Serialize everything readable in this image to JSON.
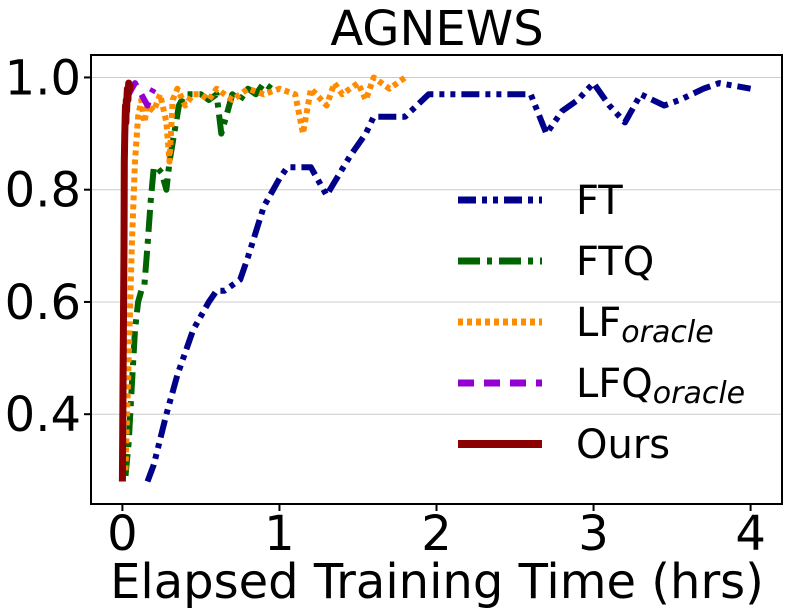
{
  "chart_data": {
    "type": "line",
    "title": "AGNEWS",
    "xlabel": "Elapsed Training Time (hrs)",
    "ylabel": "",
    "xlim": [
      -0.2,
      4.2
    ],
    "ylim": [
      0.24,
      1.04
    ],
    "xticks": [
      0,
      1,
      2,
      3,
      4
    ],
    "xtick_labels": [
      "0",
      "1",
      "2",
      "3",
      "4"
    ],
    "yticks": [
      0.4,
      0.6,
      0.8,
      1.0
    ],
    "ytick_labels": [
      "0.4",
      "0.6",
      "0.8",
      "1.0"
    ],
    "grid": "horizontal",
    "legend_placement": "lower-right",
    "series": [
      {
        "name": "FT",
        "legend_main": "FT",
        "legend_sub": "",
        "color": "#00008b",
        "dash": "dashdotdot",
        "x": [
          0.16,
          0.2,
          0.28,
          0.35,
          0.45,
          0.55,
          0.6,
          0.65,
          0.75,
          0.8,
          0.9,
          1.0,
          1.05,
          1.1,
          1.2,
          1.3,
          1.45,
          1.55,
          1.6,
          1.65,
          1.8,
          1.95,
          2.0,
          2.2,
          2.3,
          2.5,
          2.6,
          2.7,
          2.8,
          2.9,
          3.0,
          3.1,
          3.2,
          3.3,
          3.45,
          3.55,
          3.7,
          3.8,
          4.0
        ],
        "y": [
          0.28,
          0.31,
          0.4,
          0.47,
          0.55,
          0.6,
          0.62,
          0.62,
          0.64,
          0.68,
          0.77,
          0.82,
          0.84,
          0.84,
          0.84,
          0.79,
          0.86,
          0.9,
          0.93,
          0.93,
          0.93,
          0.97,
          0.97,
          0.97,
          0.97,
          0.97,
          0.97,
          0.9,
          0.94,
          0.96,
          0.99,
          0.95,
          0.92,
          0.97,
          0.95,
          0.96,
          0.98,
          0.99,
          0.98
        ]
      },
      {
        "name": "FTQ",
        "legend_main": "FTQ",
        "legend_sub": "",
        "color": "#006400",
        "dash": "dashdot",
        "x": [
          0.02,
          0.04,
          0.06,
          0.08,
          0.1,
          0.12,
          0.14,
          0.16,
          0.18,
          0.2,
          0.22,
          0.25,
          0.28,
          0.3,
          0.33,
          0.36,
          0.4,
          0.45,
          0.5,
          0.55,
          0.6,
          0.63,
          0.66,
          0.7,
          0.75,
          0.8,
          0.85,
          0.9,
          0.95
        ],
        "y": [
          0.29,
          0.35,
          0.45,
          0.55,
          0.6,
          0.62,
          0.63,
          0.7,
          0.78,
          0.84,
          0.84,
          0.83,
          0.8,
          0.85,
          0.9,
          0.95,
          0.97,
          0.97,
          0.97,
          0.96,
          0.97,
          0.9,
          0.93,
          0.97,
          0.96,
          0.98,
          0.97,
          0.99,
          0.98
        ]
      },
      {
        "name": "LForacle",
        "legend_main": "LF",
        "legend_sub": "oracle",
        "color": "#ff8c00",
        "dash": "dotted",
        "x": [
          0.02,
          0.04,
          0.06,
          0.08,
          0.1,
          0.12,
          0.14,
          0.16,
          0.2,
          0.24,
          0.28,
          0.3,
          0.32,
          0.35,
          0.4,
          0.45,
          0.5,
          0.55,
          0.6,
          0.7,
          0.8,
          0.9,
          1.0,
          1.1,
          1.15,
          1.2,
          1.3,
          1.35,
          1.4,
          1.5,
          1.55,
          1.6,
          1.7,
          1.8
        ],
        "y": [
          0.3,
          0.5,
          0.7,
          0.85,
          0.93,
          0.96,
          0.92,
          0.95,
          0.94,
          0.97,
          0.92,
          0.85,
          0.96,
          0.98,
          0.95,
          0.97,
          0.97,
          0.96,
          0.98,
          0.96,
          0.98,
          0.97,
          0.98,
          0.97,
          0.9,
          0.98,
          0.95,
          0.99,
          0.97,
          0.99,
          0.96,
          1.0,
          0.98,
          1.0
        ]
      },
      {
        "name": "LFQoracle",
        "legend_main": "LFQ",
        "legend_sub": "oracle",
        "color": "#9400d3",
        "dash": "dashed",
        "x": [
          0.04,
          0.06,
          0.08,
          0.1,
          0.12,
          0.14,
          0.16,
          0.18,
          0.2
        ],
        "y": [
          0.97,
          0.98,
          0.99,
          0.98,
          0.97,
          0.96,
          0.95,
          0.97,
          0.98
        ]
      },
      {
        "name": "Ours",
        "legend_main": "Ours",
        "legend_sub": "",
        "color": "#8b0000",
        "dash": "solid",
        "x": [
          0.0,
          0.005,
          0.01,
          0.012,
          0.015,
          0.018,
          0.02,
          0.022,
          0.025,
          0.027,
          0.03,
          0.032,
          0.035,
          0.04,
          0.045,
          0.05
        ],
        "y": [
          0.28,
          0.5,
          0.7,
          0.85,
          0.9,
          0.93,
          0.95,
          0.92,
          0.96,
          0.94,
          0.97,
          0.98,
          0.96,
          0.99,
          0.98,
          0.99
        ]
      }
    ]
  }
}
